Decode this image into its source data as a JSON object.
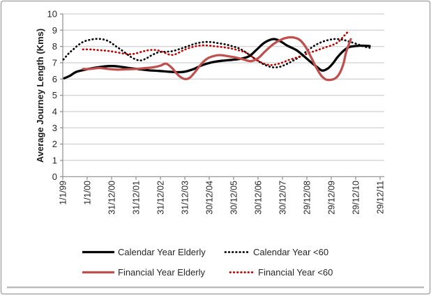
{
  "figure": {
    "background": "#ffffff",
    "border_color": "#a9a9a9",
    "bottom_shadow_color": "#bdbdbd"
  },
  "axis_style": {
    "text_color": "#262626",
    "axis_line_color": "#8c8c8c",
    "grid_color": "#c6c6c6"
  },
  "chart_data": {
    "type": "line",
    "title": "",
    "xlabel": "",
    "ylabel": "Average Journey Length (Kms)",
    "ylim": [
      0,
      10
    ],
    "ytick_labels": [
      "0",
      "1",
      "2",
      "3",
      "4",
      "5",
      "6",
      "7",
      "8",
      "9",
      "10"
    ],
    "xtick_labels": [
      "1/1/99",
      "1/1/00",
      "31/12/00",
      "31/12/01",
      "31/12/02",
      "31/12/03",
      "30/12/04",
      "30/12/05",
      "30/12/06",
      "30/12/07",
      "29/12/08",
      "29/12/09",
      "29/12/10",
      "29/12/11"
    ],
    "x_unit": "tick_index (ticks approx. 1 year apart, 0 = 1/1/99)",
    "grid": "horizontal",
    "legend_position": "bottom",
    "series": [
      {
        "name": "Calendar Year Elderly",
        "color": "#000000",
        "style": "solid",
        "points": [
          [
            0.06,
            6.05
          ],
          [
            0.29,
            6.2
          ],
          [
            0.57,
            6.45
          ],
          [
            1.0,
            6.6
          ],
          [
            1.43,
            6.72
          ],
          [
            1.94,
            6.8
          ],
          [
            2.34,
            6.76
          ],
          [
            2.71,
            6.68
          ],
          [
            3.14,
            6.6
          ],
          [
            3.57,
            6.53
          ],
          [
            3.94,
            6.5
          ],
          [
            4.34,
            6.45
          ],
          [
            4.71,
            6.42
          ],
          [
            5.0,
            6.45
          ],
          [
            5.37,
            6.62
          ],
          [
            5.71,
            6.85
          ],
          [
            6.09,
            7.02
          ],
          [
            6.51,
            7.12
          ],
          [
            6.94,
            7.18
          ],
          [
            7.29,
            7.25
          ],
          [
            7.63,
            7.4
          ],
          [
            7.94,
            7.8
          ],
          [
            8.23,
            8.2
          ],
          [
            8.51,
            8.42
          ],
          [
            8.71,
            8.45
          ],
          [
            8.94,
            8.3
          ],
          [
            9.2,
            8.05
          ],
          [
            9.57,
            7.78
          ],
          [
            9.86,
            7.43
          ],
          [
            10.14,
            7.07
          ],
          [
            10.43,
            6.72
          ],
          [
            10.63,
            6.52
          ],
          [
            10.86,
            6.65
          ],
          [
            11.06,
            6.95
          ],
          [
            11.26,
            7.35
          ],
          [
            11.49,
            7.72
          ],
          [
            11.71,
            7.95
          ],
          [
            12.0,
            8.03
          ],
          [
            12.29,
            8.05
          ],
          [
            12.57,
            8.03
          ]
        ]
      },
      {
        "name": "Calendar Year <60",
        "color": "#000000",
        "style": "dotted",
        "points": [
          [
            0.03,
            7.2
          ],
          [
            0.23,
            7.55
          ],
          [
            0.43,
            7.82
          ],
          [
            0.63,
            8.08
          ],
          [
            0.86,
            8.3
          ],
          [
            1.14,
            8.42
          ],
          [
            1.43,
            8.47
          ],
          [
            1.71,
            8.42
          ],
          [
            1.94,
            8.27
          ],
          [
            2.14,
            8.05
          ],
          [
            2.34,
            7.85
          ],
          [
            2.57,
            7.6
          ],
          [
            2.8,
            7.35
          ],
          [
            3.03,
            7.18
          ],
          [
            3.23,
            7.15
          ],
          [
            3.46,
            7.3
          ],
          [
            3.69,
            7.5
          ],
          [
            3.94,
            7.65
          ],
          [
            4.23,
            7.68
          ],
          [
            4.51,
            7.72
          ],
          [
            4.8,
            7.85
          ],
          [
            5.09,
            8.0
          ],
          [
            5.43,
            8.17
          ],
          [
            5.77,
            8.27
          ],
          [
            6.09,
            8.27
          ],
          [
            6.37,
            8.2
          ],
          [
            6.66,
            8.13
          ],
          [
            6.94,
            8.02
          ],
          [
            7.23,
            7.88
          ],
          [
            7.49,
            7.65
          ],
          [
            7.74,
            7.38
          ],
          [
            8.03,
            7.08
          ],
          [
            8.31,
            6.85
          ],
          [
            8.6,
            6.72
          ],
          [
            8.89,
            6.75
          ],
          [
            9.17,
            6.92
          ],
          [
            9.46,
            7.15
          ],
          [
            9.74,
            7.4
          ],
          [
            10.03,
            7.75
          ],
          [
            10.31,
            8.05
          ],
          [
            10.6,
            8.27
          ],
          [
            10.89,
            8.4
          ],
          [
            11.17,
            8.46
          ],
          [
            11.46,
            8.42
          ],
          [
            11.74,
            8.3
          ],
          [
            12.06,
            8.15
          ],
          [
            12.34,
            8.0
          ],
          [
            12.57,
            7.92
          ]
        ]
      },
      {
        "name": "Financial Year Elderly",
        "color": "#c0504d",
        "style": "solid",
        "points": [
          [
            0.83,
            6.62
          ],
          [
            1.14,
            6.62
          ],
          [
            1.49,
            6.68
          ],
          [
            1.86,
            6.62
          ],
          [
            2.23,
            6.58
          ],
          [
            2.63,
            6.6
          ],
          [
            3.0,
            6.62
          ],
          [
            3.37,
            6.67
          ],
          [
            3.71,
            6.72
          ],
          [
            4.0,
            6.82
          ],
          [
            4.23,
            6.95
          ],
          [
            4.46,
            6.7
          ],
          [
            4.63,
            6.4
          ],
          [
            4.8,
            6.15
          ],
          [
            5.0,
            6.0
          ],
          [
            5.2,
            6.08
          ],
          [
            5.43,
            6.45
          ],
          [
            5.66,
            6.9
          ],
          [
            5.91,
            7.25
          ],
          [
            6.2,
            7.42
          ],
          [
            6.43,
            7.47
          ],
          [
            6.71,
            7.42
          ],
          [
            7.06,
            7.33
          ],
          [
            7.37,
            7.22
          ],
          [
            7.71,
            7.1
          ],
          [
            8.0,
            7.28
          ],
          [
            8.29,
            7.7
          ],
          [
            8.63,
            8.15
          ],
          [
            8.94,
            8.42
          ],
          [
            9.23,
            8.55
          ],
          [
            9.46,
            8.55
          ],
          [
            9.71,
            8.4
          ],
          [
            9.94,
            8.0
          ],
          [
            10.17,
            7.35
          ],
          [
            10.37,
            6.75
          ],
          [
            10.57,
            6.25
          ],
          [
            10.77,
            5.98
          ],
          [
            10.97,
            5.95
          ],
          [
            11.17,
            6.05
          ],
          [
            11.34,
            6.35
          ],
          [
            11.49,
            6.9
          ],
          [
            11.6,
            7.6
          ],
          [
            11.71,
            8.1
          ],
          [
            11.8,
            8.45
          ]
        ]
      },
      {
        "name": "Financial Year <60",
        "color": "#c00000",
        "style": "dotted",
        "points": [
          [
            0.83,
            7.82
          ],
          [
            1.14,
            7.82
          ],
          [
            1.43,
            7.78
          ],
          [
            1.71,
            7.75
          ],
          [
            2.0,
            7.7
          ],
          [
            2.29,
            7.62
          ],
          [
            2.57,
            7.55
          ],
          [
            2.83,
            7.53
          ],
          [
            3.06,
            7.6
          ],
          [
            3.29,
            7.7
          ],
          [
            3.51,
            7.77
          ],
          [
            3.74,
            7.79
          ],
          [
            3.97,
            7.73
          ],
          [
            4.2,
            7.6
          ],
          [
            4.43,
            7.48
          ],
          [
            4.66,
            7.55
          ],
          [
            4.91,
            7.75
          ],
          [
            5.17,
            7.9
          ],
          [
            5.46,
            8.02
          ],
          [
            5.74,
            8.07
          ],
          [
            6.03,
            8.05
          ],
          [
            6.31,
            8.0
          ],
          [
            6.6,
            7.95
          ],
          [
            6.89,
            7.88
          ],
          [
            7.17,
            7.78
          ],
          [
            7.46,
            7.65
          ],
          [
            7.71,
            7.42
          ],
          [
            7.97,
            7.15
          ],
          [
            8.23,
            6.95
          ],
          [
            8.49,
            6.86
          ],
          [
            8.74,
            6.9
          ],
          [
            8.97,
            7.0
          ],
          [
            9.26,
            7.17
          ],
          [
            9.54,
            7.3
          ],
          [
            9.83,
            7.45
          ],
          [
            10.09,
            7.6
          ],
          [
            10.34,
            7.73
          ],
          [
            10.57,
            7.85
          ],
          [
            10.8,
            7.97
          ],
          [
            11.03,
            8.08
          ],
          [
            11.23,
            8.22
          ],
          [
            11.4,
            8.45
          ],
          [
            11.54,
            8.68
          ],
          [
            11.66,
            8.87
          ]
        ]
      }
    ]
  }
}
